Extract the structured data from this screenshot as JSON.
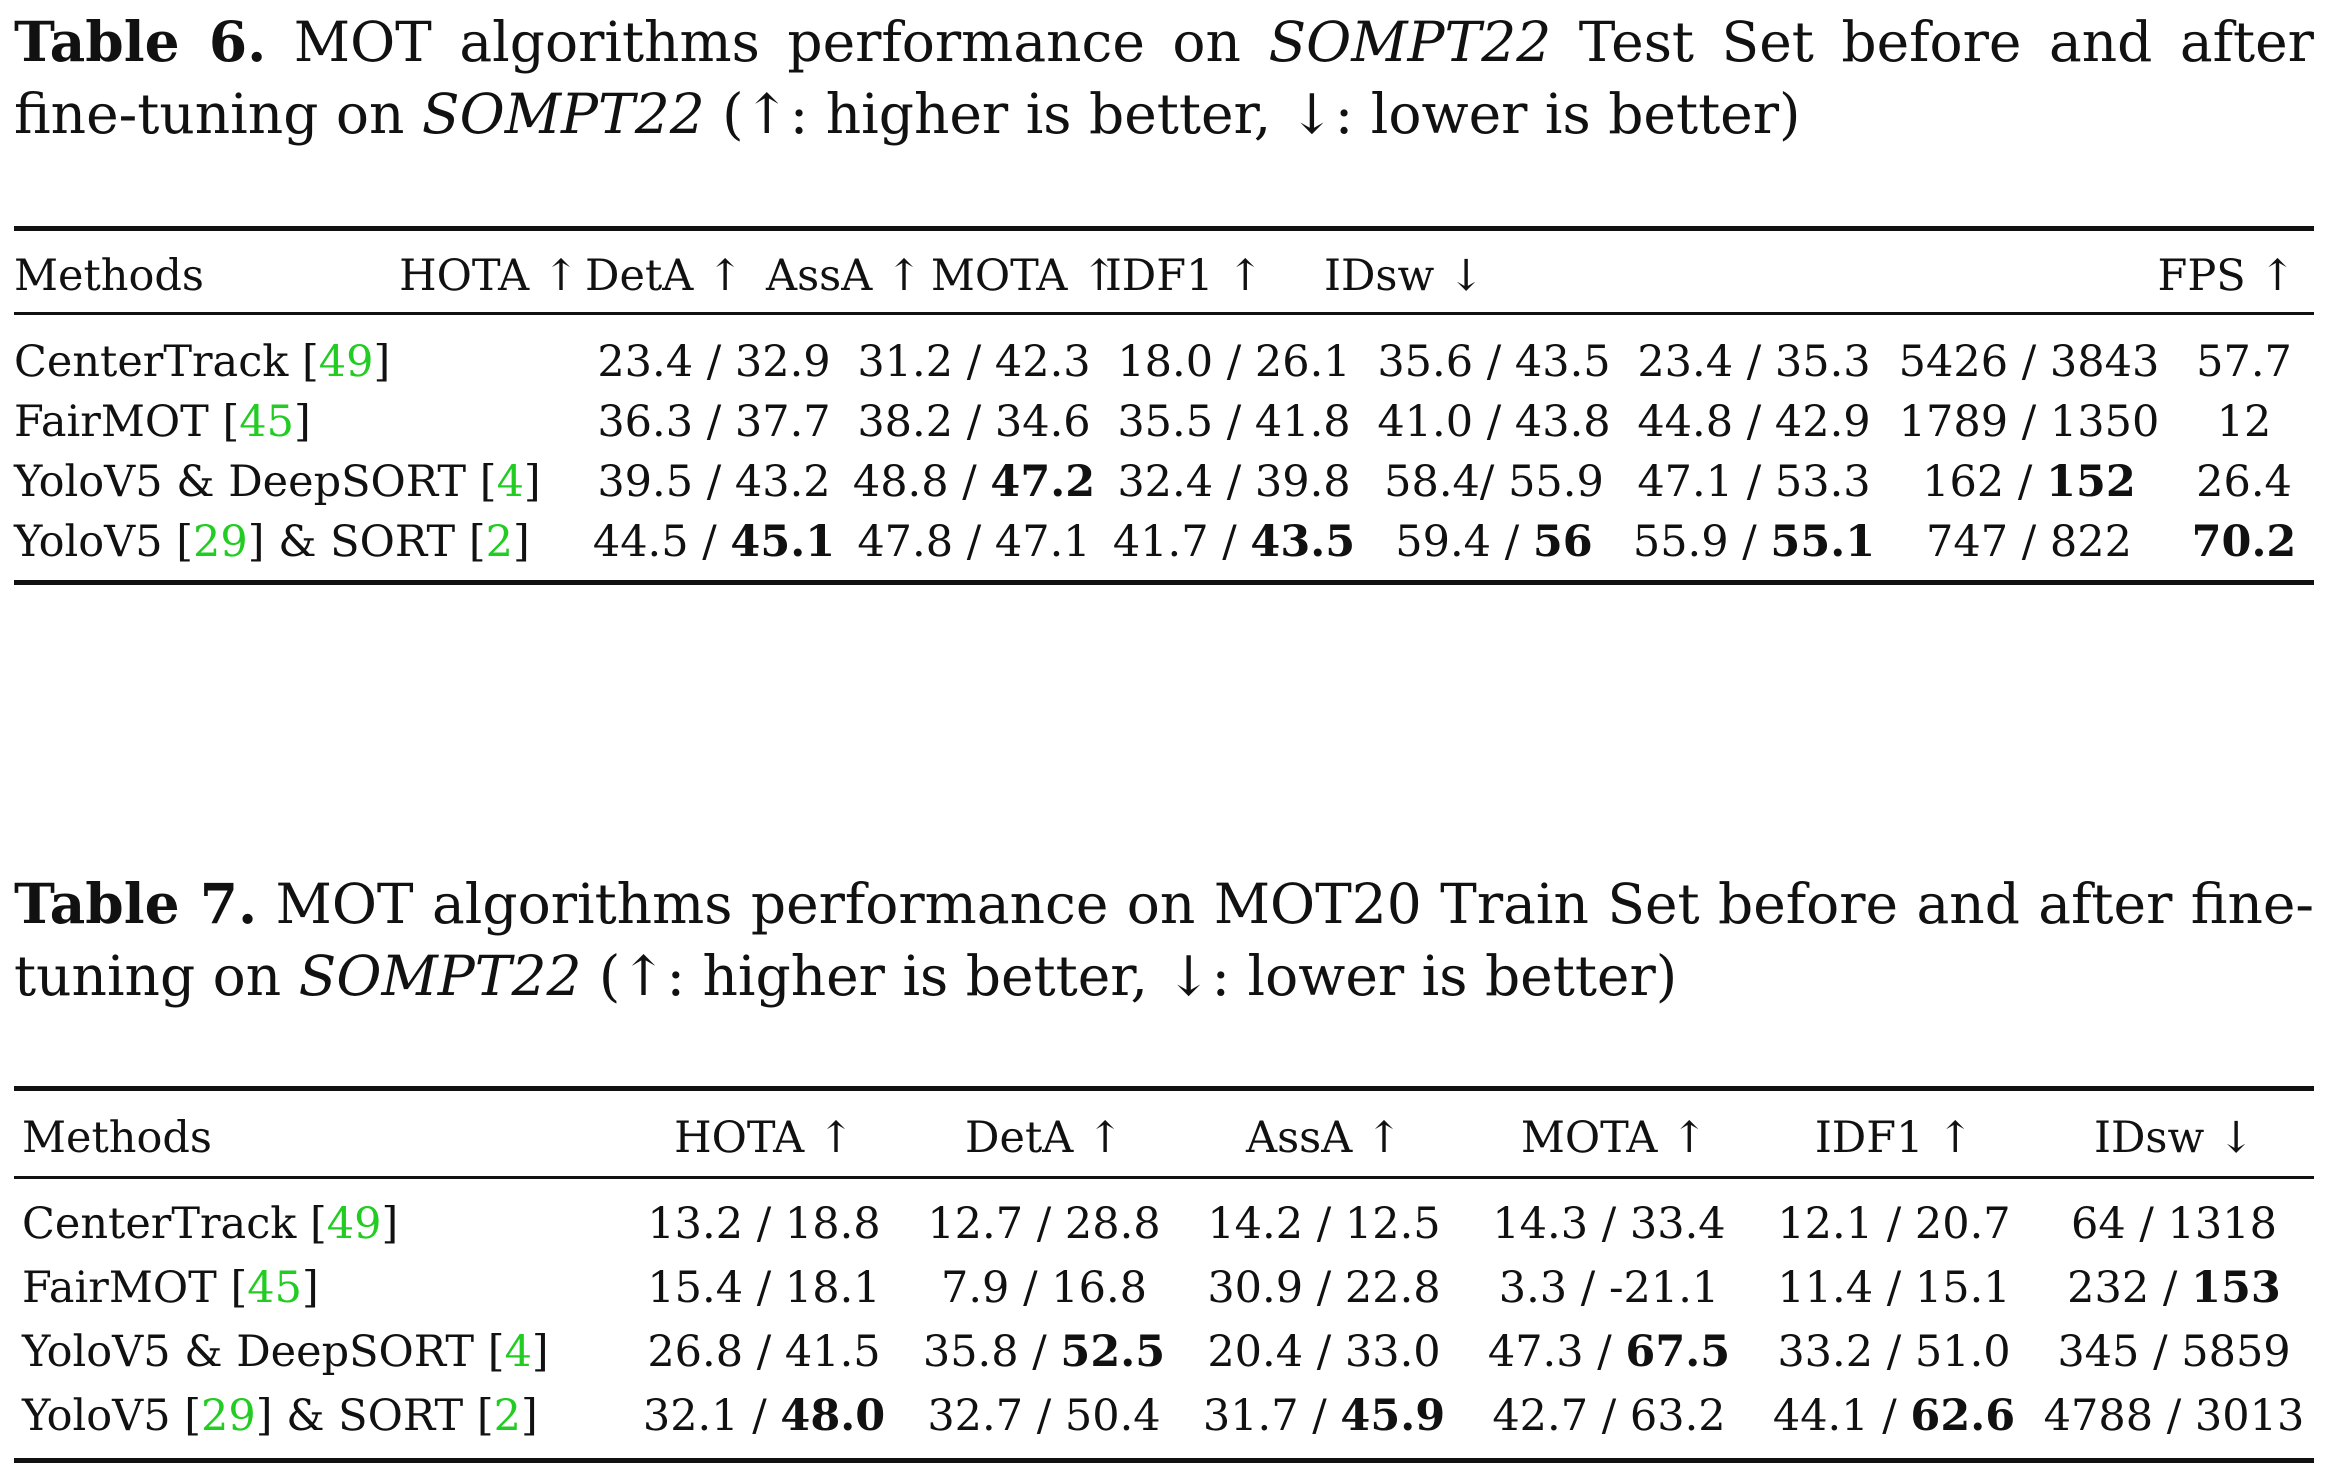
{
  "tables": [
    {
      "caption_label": "Table 6.",
      "caption_pre": " MOT algorithms performance on ",
      "caption_ital1": "SOMPT22",
      "caption_mid": " Test Set before and after fine-tuning on ",
      "caption_ital2": "SOMPT22",
      "caption_post": " (↑: higher is better, ↓: lower is better)",
      "headers": [
        "Methods",
        "HOTA ↑",
        "DetA ↑",
        "AssA ↑",
        "MOTA ↑",
        "IDF1 ↑",
        "IDsw ↓",
        "FPS ↑"
      ],
      "rows": [
        {
          "method": "CenterTrack ",
          "cite": "49",
          "method2": "",
          "cite2": "",
          "hota": [
            "23.4",
            "32.9"
          ],
          "deta": [
            "31.2",
            "42.3"
          ],
          "assa": [
            "18.0",
            "26.1"
          ],
          "mota": [
            "35.6",
            "43.5"
          ],
          "idf1": [
            "23.4",
            "35.3"
          ],
          "idsw": [
            "5426",
            "3843"
          ],
          "fps": "57.7"
        },
        {
          "method": "FairMOT ",
          "cite": "45",
          "method2": "",
          "cite2": "",
          "hota": [
            "36.3",
            "37.7"
          ],
          "deta": [
            "38.2",
            "34.6"
          ],
          "assa": [
            "35.5",
            "41.8"
          ],
          "mota": [
            "41.0",
            "43.8"
          ],
          "idf1": [
            "44.8",
            "42.9"
          ],
          "idsw": [
            "1789",
            "1350"
          ],
          "fps": "12"
        },
        {
          "method": "YoloV5 & DeepSORT ",
          "cite": "4",
          "method2": "",
          "cite2": "",
          "hota": [
            "39.5",
            "43.2"
          ],
          "deta": [
            "48.8",
            "47.2"
          ],
          "assa": [
            "32.4",
            "39.8"
          ],
          "mota": [
            "58.4",
            "55.9"
          ],
          "idf1": [
            "47.1",
            "53.3"
          ],
          "idsw": [
            "162",
            "152"
          ],
          "fps": "26.4"
        },
        {
          "method": "YoloV5 ",
          "cite": "29",
          "method2": " & SORT ",
          "cite2": "2",
          "hota": [
            "44.5",
            "45.1"
          ],
          "deta": [
            "47.8",
            "47.1"
          ],
          "assa": [
            "41.7",
            "43.5"
          ],
          "mota": [
            "59.4",
            "56"
          ],
          "idf1": [
            "55.9",
            "55.1"
          ],
          "idsw": [
            "747",
            "822"
          ],
          "fps": "70.2"
        }
      ]
    },
    {
      "caption_label": "Table 7.",
      "caption_pre": " MOT algorithms performance on MOT20 Train Set before and after fine-tuning on ",
      "caption_ital1": "SOMPT22",
      "caption_mid": "",
      "caption_ital2": "",
      "caption_post": " (↑: higher is better, ↓: lower is better)",
      "headers": [
        "Methods",
        "HOTA ↑",
        "DetA ↑",
        "AssA ↑",
        "MOTA ↑",
        "IDF1 ↑",
        "IDsw ↓"
      ],
      "rows": [
        {
          "method": "CenterTrack ",
          "cite": "49",
          "method2": "",
          "cite2": "",
          "hota": [
            "13.2",
            "18.8"
          ],
          "deta": [
            "12.7",
            "28.8"
          ],
          "assa": [
            "14.2",
            "12.5"
          ],
          "mota": [
            "14.3",
            "33.4"
          ],
          "idf1": [
            "12.1",
            "20.7"
          ],
          "idsw": [
            "64",
            "1318"
          ]
        },
        {
          "method": "FairMOT ",
          "cite": "45",
          "method2": "",
          "cite2": "",
          "hota": [
            "15.4",
            "18.1"
          ],
          "deta": [
            "7.9",
            "16.8"
          ],
          "assa": [
            "30.9",
            "22.8"
          ],
          "mota": [
            "3.3",
            "-21.1"
          ],
          "idf1": [
            "11.4",
            "15.1"
          ],
          "idsw": [
            "232",
            "153"
          ]
        },
        {
          "method": "YoloV5 & DeepSORT ",
          "cite": "4",
          "method2": "",
          "cite2": "",
          "hota": [
            "26.8",
            "41.5"
          ],
          "deta": [
            "35.8",
            "52.5"
          ],
          "assa": [
            "20.4",
            "33.0"
          ],
          "mota": [
            "47.3",
            "67.5"
          ],
          "idf1": [
            "33.2",
            "51.0"
          ],
          "idsw": [
            "345",
            "5859"
          ]
        },
        {
          "method": "YoloV5 ",
          "cite": "29",
          "method2": " & SORT ",
          "cite2": "2",
          "hota": [
            "32.1",
            "48.0"
          ],
          "deta": [
            "32.7",
            "50.4"
          ],
          "assa": [
            "31.7",
            "45.9"
          ],
          "mota": [
            "42.7",
            "63.2"
          ],
          "idf1": [
            "44.1",
            "62.6"
          ],
          "idsw": [
            "4788",
            "3013"
          ]
        }
      ]
    }
  ]
}
